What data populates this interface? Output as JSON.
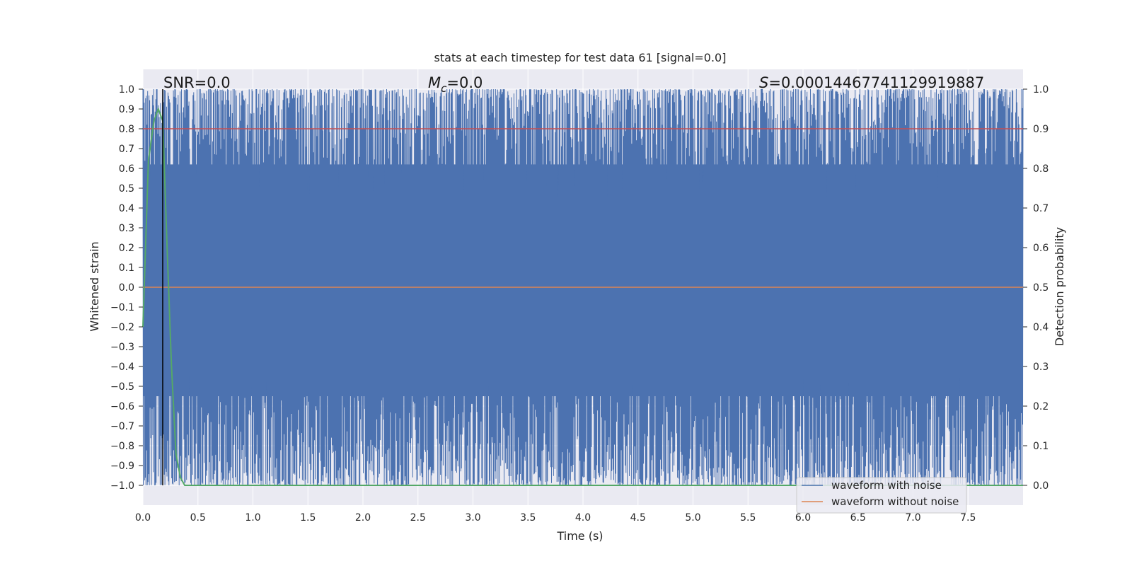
{
  "chart_data": {
    "type": "line",
    "title": "stats at each timestep for test data 61 [signal=0.0]",
    "xlabel": "Time (s)",
    "ylabel": "Whitened strain",
    "y2label": "Detection probability",
    "xlim": [
      0.0,
      8.0
    ],
    "ylim": [
      -1.1,
      1.1
    ],
    "y2lim": [
      -0.05,
      1.05
    ],
    "xticks": [
      "0.0",
      "0.5",
      "1.0",
      "1.5",
      "2.0",
      "2.5",
      "3.0",
      "3.5",
      "4.0",
      "4.5",
      "5.0",
      "5.5",
      "6.0",
      "6.5",
      "7.0",
      "7.5"
    ],
    "yticks": [
      "1.0",
      "0.9",
      "0.8",
      "0.7",
      "0.6",
      "0.5",
      "0.4",
      "0.3",
      "0.2",
      "0.1",
      "0.0",
      "−0.1",
      "−0.2",
      "−0.3",
      "−0.4",
      "−0.5",
      "−0.6",
      "−0.7",
      "−0.8",
      "−0.9",
      "−1.0"
    ],
    "y2ticks": [
      "1.0",
      "0.9",
      "0.8",
      "0.7",
      "0.6",
      "0.5",
      "0.4",
      "0.3",
      "0.2",
      "0.1",
      "0.0"
    ],
    "grid": true,
    "annotations": {
      "snr_prefix": "SNR=",
      "snr_value": "0.0",
      "mc_symbol": "M",
      "mc_sub": "c",
      "mc_value": "=0.0",
      "s_symbol": "S",
      "s_value": "=0.00014467741129919887"
    },
    "series": [
      {
        "name": "waveform with noise",
        "color": "#4c72b0",
        "kind": "noise",
        "range": [
          -1.0,
          1.0
        ]
      },
      {
        "name": "waveform without noise",
        "color": "#dd8452",
        "kind": "flat",
        "value": 0.0
      },
      {
        "name": "detection probability",
        "color": "#55a868",
        "axis": "right",
        "x": [
          0.0,
          0.05,
          0.1,
          0.14,
          0.18,
          0.22,
          0.26,
          0.3,
          0.34,
          0.38,
          8.0
        ],
        "y": [
          0.4,
          0.82,
          0.92,
          0.95,
          0.92,
          0.6,
          0.3,
          0.08,
          0.02,
          0.0,
          0.0
        ]
      },
      {
        "name": "threshold",
        "color": "#c44e52",
        "axis": "right",
        "kind": "hline",
        "value": 0.9
      },
      {
        "name": "event marker",
        "color": "#000000",
        "kind": "vline",
        "x": 0.18
      }
    ],
    "legend": {
      "position": "lower-right",
      "entries": [
        "waveform with noise",
        "waveform without noise"
      ]
    }
  }
}
